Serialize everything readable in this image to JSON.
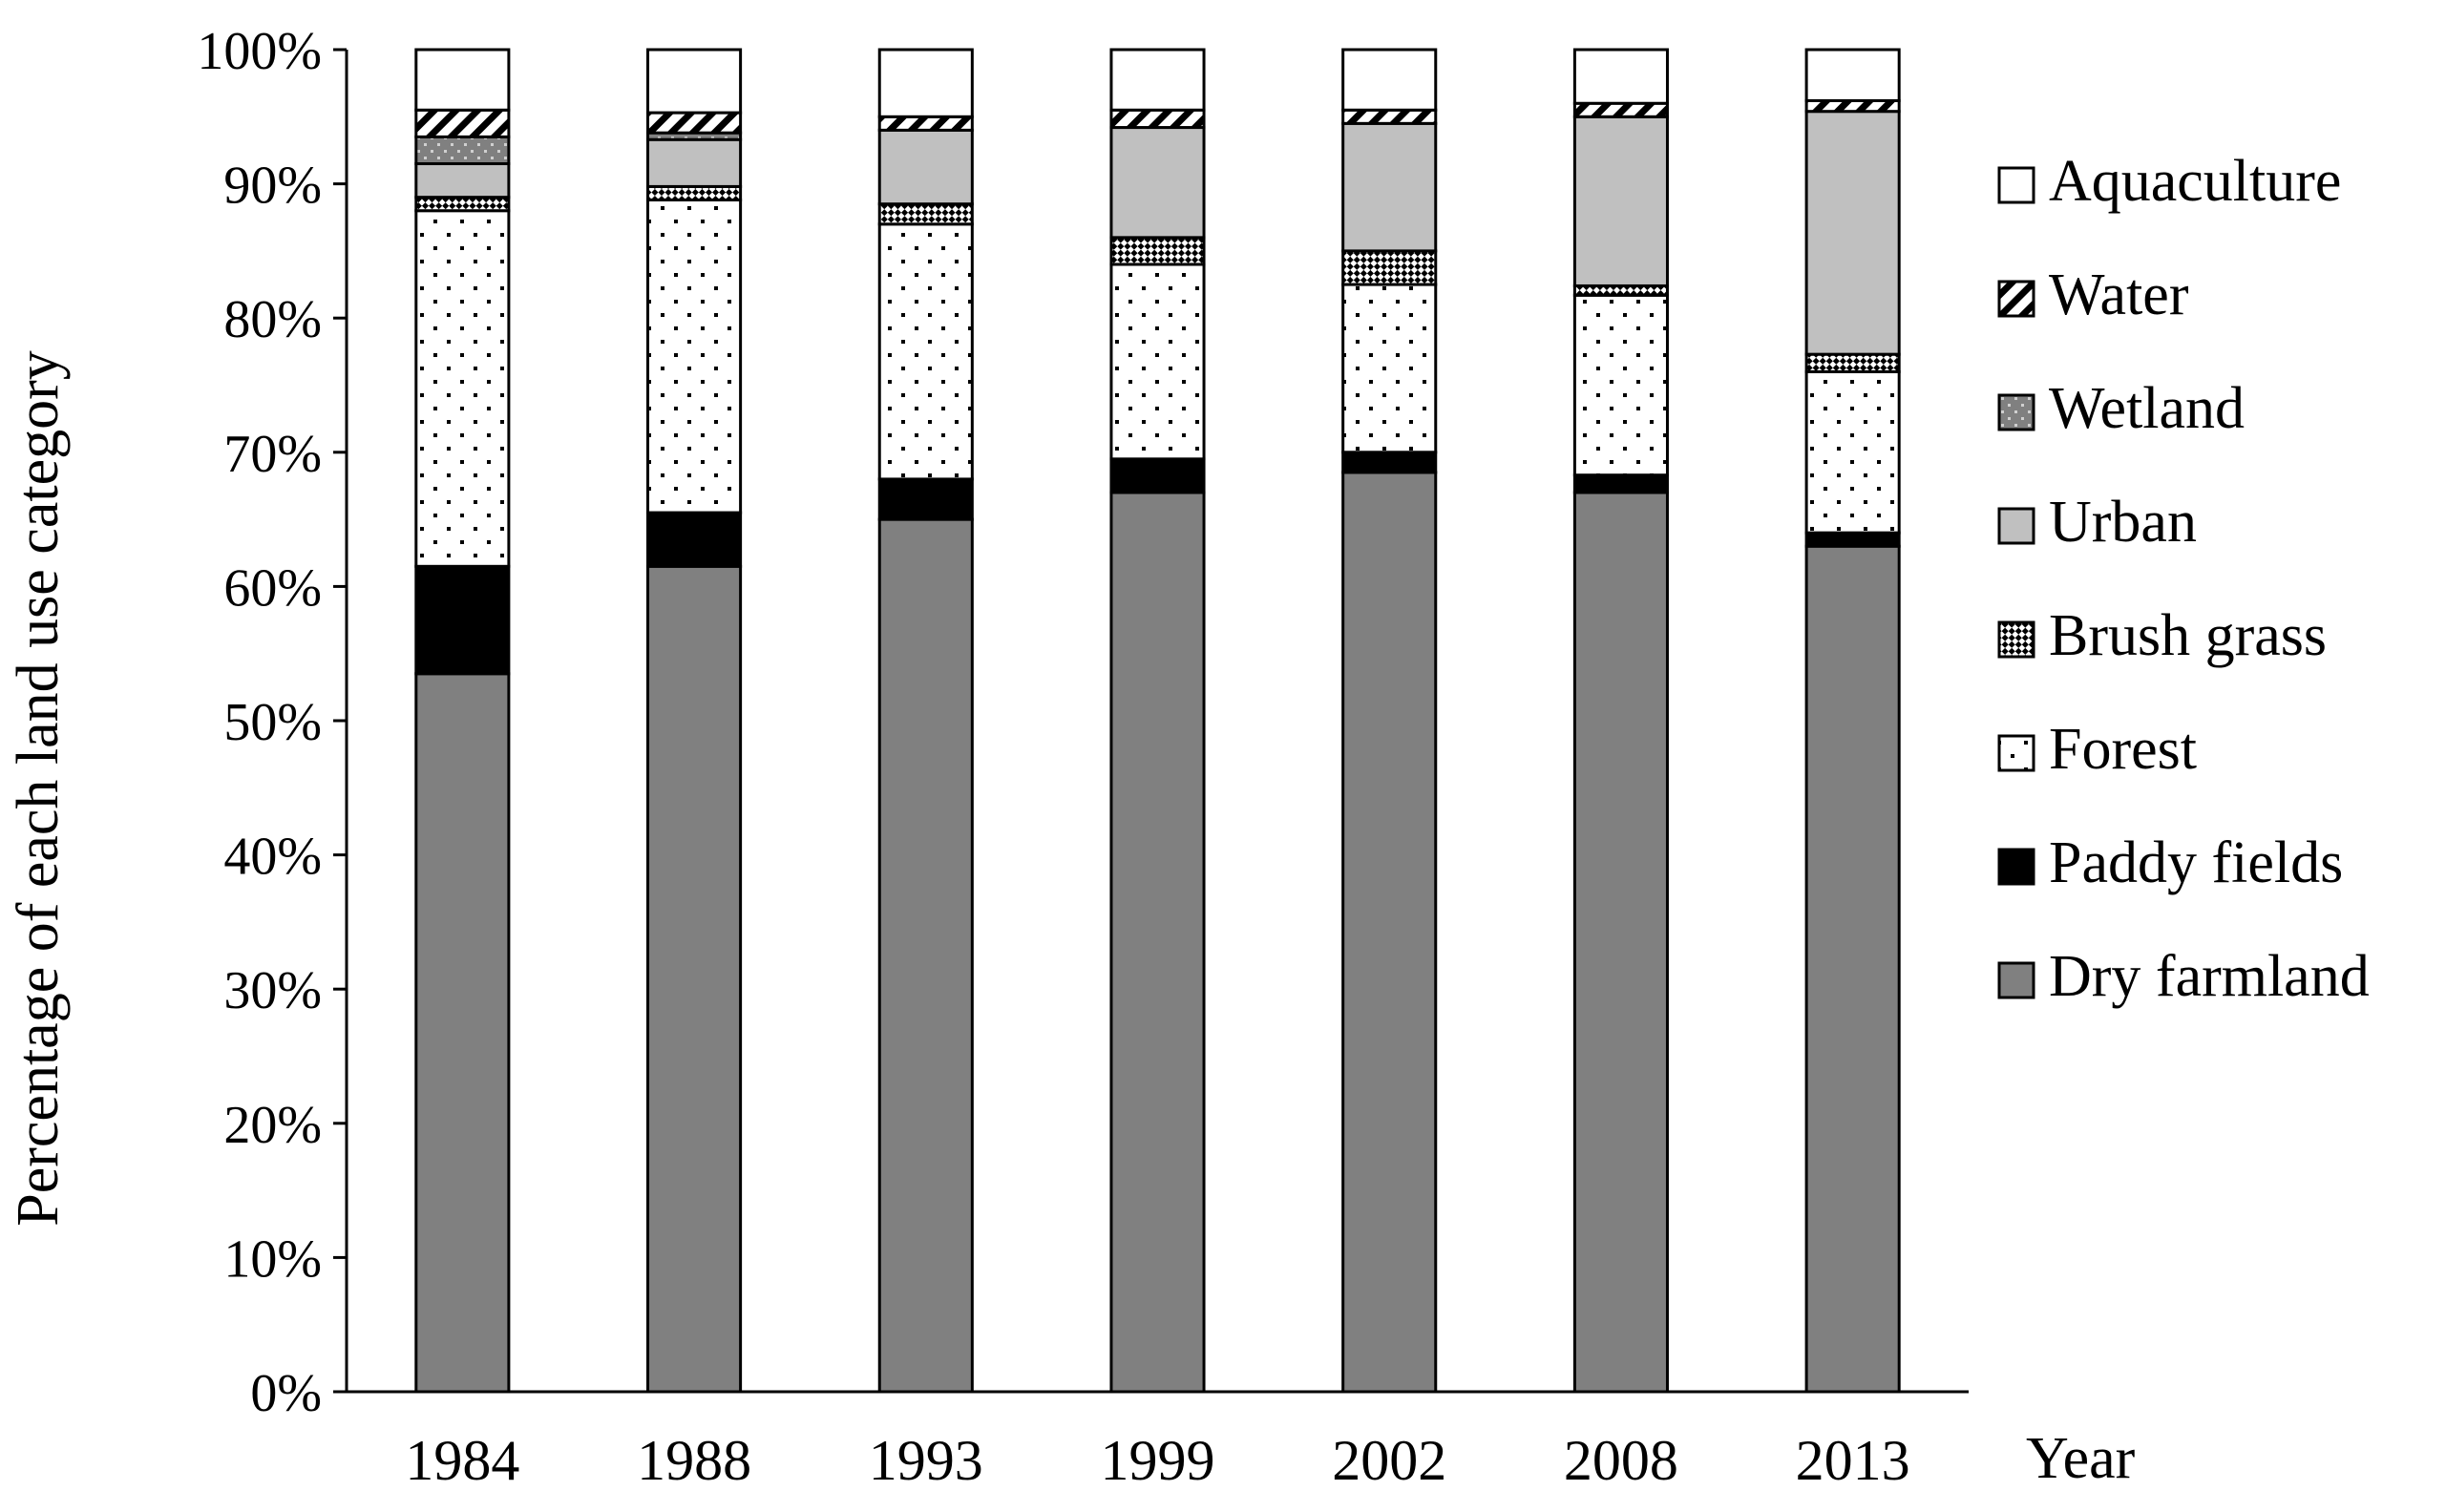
{
  "chart_data": {
    "type": "bar",
    "stacked": true,
    "percent": true,
    "categories": [
      "1984",
      "1988",
      "1993",
      "1999",
      "2002",
      "2008",
      "2013"
    ],
    "series": [
      {
        "name": "Dry farmland",
        "values": [
          53.5,
          61.5,
          65.0,
          67.0,
          68.5,
          67.0,
          63.0
        ],
        "fill": "#808080",
        "pattern": "solid"
      },
      {
        "name": "Paddy fields",
        "values": [
          8.0,
          4.0,
          3.0,
          2.5,
          1.5,
          1.3,
          1.0
        ],
        "fill": "#000000",
        "pattern": "solid"
      },
      {
        "name": "Forest",
        "values": [
          26.5,
          23.3,
          19.0,
          14.5,
          12.5,
          13.4,
          12.0
        ],
        "fill": "#ffffff",
        "pattern": "dots"
      },
      {
        "name": "Brush grass",
        "values": [
          1.0,
          1.0,
          1.5,
          2.0,
          2.5,
          0.7,
          1.3
        ],
        "fill": "#ffffff",
        "pattern": "checker"
      },
      {
        "name": "Urban",
        "values": [
          2.5,
          3.5,
          5.5,
          8.2,
          9.5,
          12.6,
          18.1
        ],
        "fill": "#c0c0c0",
        "pattern": "solid"
      },
      {
        "name": "Wetland",
        "values": [
          2.0,
          0.5,
          0.0,
          0.0,
          0.0,
          0.0,
          0.0
        ],
        "fill": "#808080",
        "pattern": "wetland"
      },
      {
        "name": "Water",
        "values": [
          2.0,
          1.5,
          1.0,
          1.3,
          1.0,
          1.0,
          0.8
        ],
        "fill": "#ffffff",
        "pattern": "diagonal"
      },
      {
        "name": "Aquaculture",
        "values": [
          4.5,
          4.7,
          5.0,
          4.5,
          4.5,
          4.0,
          3.8
        ],
        "fill": "#ffffff",
        "pattern": "solid"
      }
    ],
    "ylabel": "Percentage of each land use category",
    "xlabel": "Year",
    "ylim": [
      0,
      100
    ],
    "yticks": [
      "0%",
      "10%",
      "20%",
      "30%",
      "40%",
      "50%",
      "60%",
      "70%",
      "80%",
      "90%",
      "100%"
    ],
    "grid": false,
    "legend_position": "right",
    "legend_order": [
      "Aquaculture",
      "Water",
      "Wetland",
      "Urban",
      "Brush grass",
      "Forest",
      "Paddy fields",
      "Dry farmland"
    ]
  }
}
